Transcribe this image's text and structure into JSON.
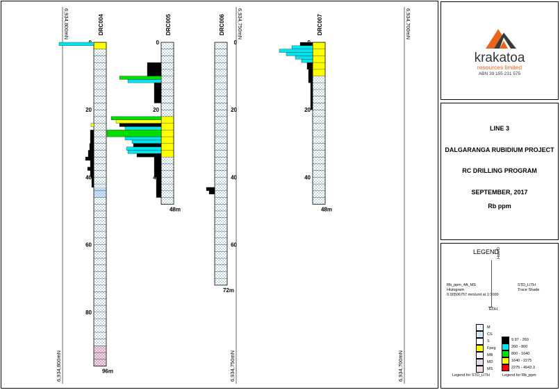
{
  "logo": {
    "brand": "krakatoa",
    "sub": "resources limited",
    "abn": "ABN 39 155 231 575"
  },
  "title_block": {
    "lines": [
      "LINE 3",
      "DALGARANGA RUBIDIUM PROJECT",
      "RC DRILLING PROGRAM",
      "SEPTEMBER, 2017",
      "Rb ppm"
    ]
  },
  "northing": {
    "left": "6,934,800mN",
    "mid": "6,934,750mN",
    "right": "6,934,700mN"
  },
  "holes": [
    {
      "id": "DRC004",
      "depth": 96,
      "label": "96m",
      "ticks": [
        "0",
        "20",
        "40",
        "60",
        "80"
      ]
    },
    {
      "id": "DRC005",
      "depth": 48,
      "label": "48m",
      "ticks": [
        "0",
        "20",
        "40"
      ]
    },
    {
      "id": "DRC006",
      "depth": 72,
      "label": "72m",
      "ticks": [
        "0",
        "20",
        "40",
        "60"
      ]
    },
    {
      "id": "DRC007",
      "depth": 48,
      "label": "48m",
      "ticks": [
        "0",
        "20",
        "40"
      ]
    }
  ],
  "legend": {
    "title": "LEGEND",
    "hist_desc": [
      "Rb_ppm_4A_MS",
      "Histogram",
      "0.00506757 mm/unit at 1:1000"
    ],
    "trace_desc": [
      "STD_LITH",
      "Trace Shade"
    ],
    "hole_id": "HoleID",
    "eoh": "EOH",
    "lith_items": [
      "M",
      "CS",
      "S",
      "Fpeg",
      "MB",
      "MD",
      "MS"
    ],
    "lith_colors": [
      "#f4f4ff",
      "#cdeafc",
      "#ffffff",
      "#ffff00",
      "#ffffff",
      "#e6d8f0",
      "#f4dcec"
    ],
    "rb_items": [
      "9.97 - 260",
      "260 - 800",
      "800 - 1640",
      "1640 - 2275",
      "2275 - 4943.3"
    ],
    "rb_colors": [
      "#000000",
      "#00e5ee",
      "#00dd00",
      "#ffff00",
      "#ff0000"
    ],
    "lith_caption": "Legend for STD_LITH",
    "rb_caption": "Legend for Rb_ppm"
  }
}
